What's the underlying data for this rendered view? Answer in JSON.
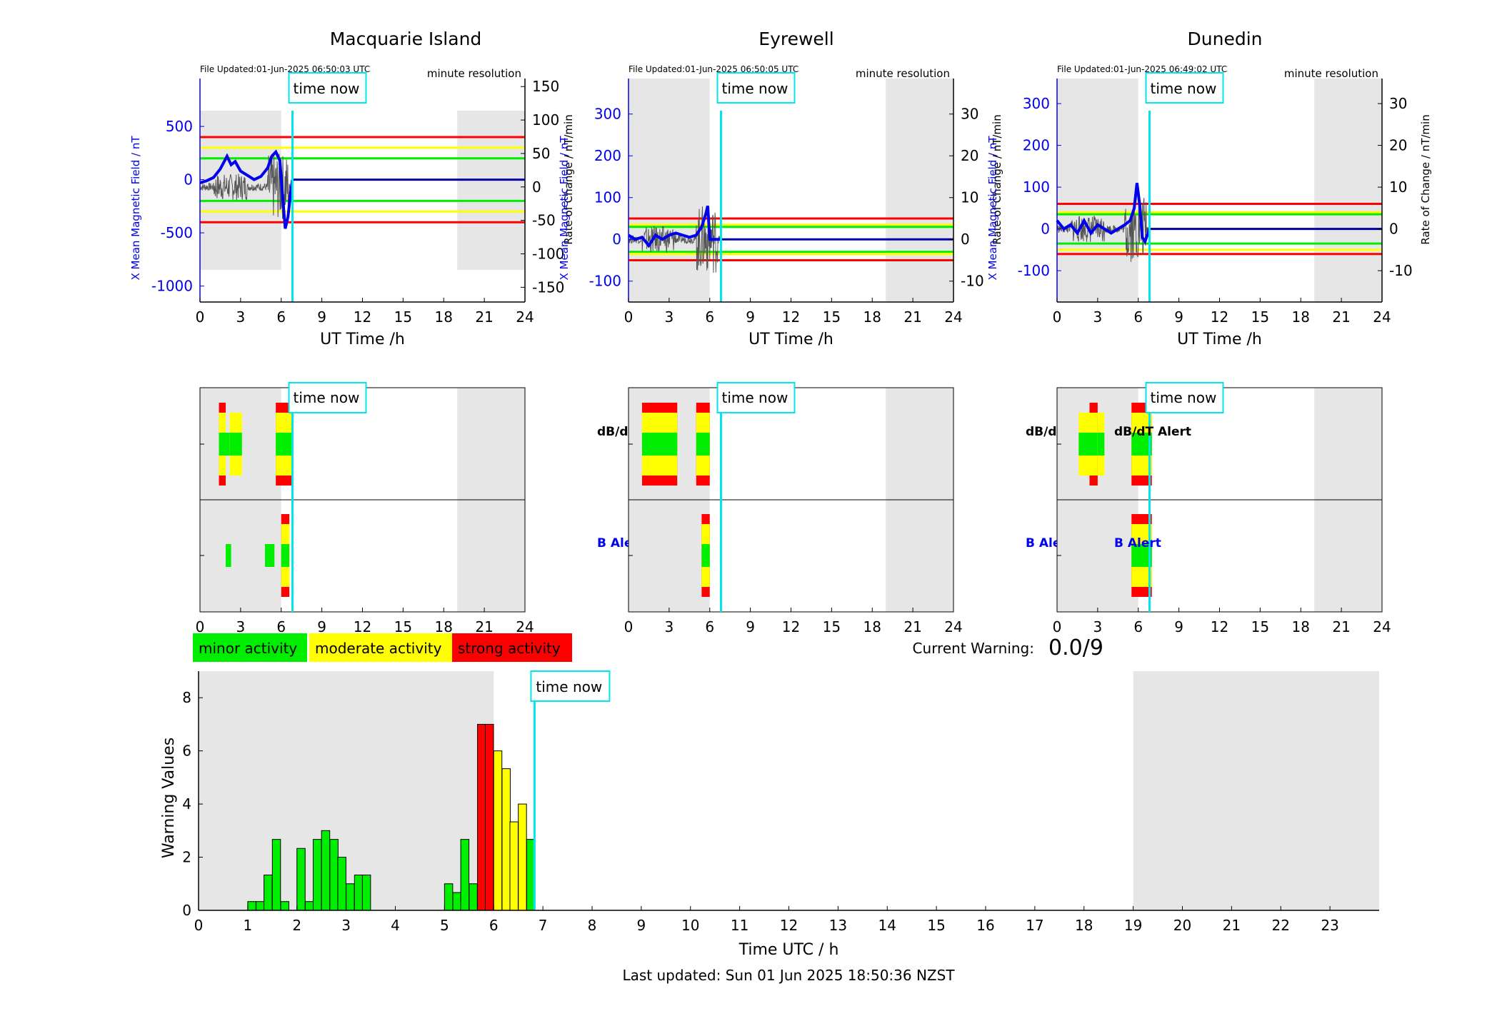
{
  "colors": {
    "minor": "#00ee00",
    "moderate": "#ffff00",
    "strong": "#ff0000",
    "field": "#0000ee",
    "rate": "#555555",
    "now": "#00e5ee",
    "night": "#e6e6e6"
  },
  "common": {
    "file_label": "File Updated:",
    "resolution": "minute resolution",
    "time_now": "time now",
    "x_label": "UT Time /h",
    "y_left_label": "X Mean Magnetic Field / nT",
    "y_right_label": "Rate of Change / nT/min",
    "dbdt_label": "dB/dT Alert",
    "b_label": "B Alert",
    "hour_ticks": [
      0,
      3,
      6,
      9,
      12,
      15,
      18,
      21,
      24
    ]
  },
  "current_hour": 6.83,
  "night_ranges": [
    [
      0,
      6
    ],
    [
      19,
      24
    ]
  ],
  "stations": [
    {
      "name": "Macquarie Island",
      "file_updated": "01-Jun-2025 06:50:03 UTC",
      "y_left_ticks": [
        500,
        0,
        -500,
        -1000
      ],
      "y_left_range": [
        -1150,
        950
      ],
      "y_right_ticks": [
        150,
        100,
        50,
        0,
        -50,
        -100,
        -150
      ],
      "y_right_range": [
        -172,
        162
      ],
      "thresholds": [
        {
          "level": "strong",
          "value": 400
        },
        {
          "level": "moderate",
          "value": 300
        },
        {
          "level": "minor",
          "value": 200
        },
        {
          "level": "minor",
          "value": -200
        },
        {
          "level": "moderate",
          "value": -300
        },
        {
          "level": "strong",
          "value": -400
        }
      ],
      "field_series": {
        "x": [
          0,
          0.5,
          1.0,
          1.5,
          2.0,
          2.3,
          2.6,
          3.0,
          3.5,
          4.0,
          4.5,
          5.0,
          5.3,
          5.6,
          5.9,
          6.1,
          6.3,
          6.5,
          6.7,
          6.83
        ],
        "y": [
          -30,
          -10,
          20,
          100,
          220,
          140,
          170,
          80,
          40,
          0,
          30,
          110,
          220,
          260,
          180,
          -150,
          -460,
          -350,
          -120,
          0
        ]
      },
      "dbdt_alerts": [
        {
          "start": 1.4,
          "end": 1.9,
          "level": "strong"
        },
        {
          "start": 1.9,
          "end": 2.2,
          "level": "minor"
        },
        {
          "start": 2.2,
          "end": 3.1,
          "level": "moderate"
        },
        {
          "start": 5.6,
          "end": 6.8,
          "level": "strong"
        }
      ],
      "b_alerts": [
        {
          "start": 1.9,
          "end": 2.3,
          "level": "minor"
        },
        {
          "start": 4.8,
          "end": 5.5,
          "level": "minor"
        },
        {
          "start": 6.0,
          "end": 6.6,
          "level": "strong"
        }
      ]
    },
    {
      "name": "Eyrewell",
      "file_updated": "01-Jun-2025 06:50:05 UTC",
      "y_left_ticks": [
        300,
        200,
        100,
        0,
        -100
      ],
      "y_left_range": [
        -150,
        385
      ],
      "y_right_ticks": [
        30,
        20,
        10,
        0,
        -10
      ],
      "y_right_range": [
        -15,
        38.5
      ],
      "thresholds": [
        {
          "level": "strong",
          "value": 50
        },
        {
          "level": "moderate",
          "value": 35
        },
        {
          "level": "minor",
          "value": 30
        },
        {
          "level": "minor",
          "value": -30
        },
        {
          "level": "moderate",
          "value": -35
        },
        {
          "level": "strong",
          "value": -50
        }
      ],
      "field_series": {
        "x": [
          0,
          0.5,
          1.0,
          1.5,
          2.0,
          2.5,
          3.0,
          3.5,
          4.0,
          4.5,
          5.0,
          5.4,
          5.7,
          5.85,
          6.0,
          6.83
        ],
        "y": [
          10,
          0,
          5,
          -15,
          10,
          0,
          10,
          15,
          10,
          5,
          10,
          30,
          60,
          80,
          0,
          0
        ]
      },
      "dbdt_alerts": [
        {
          "start": 1.0,
          "end": 3.6,
          "level": "strong"
        },
        {
          "start": 5.0,
          "end": 6.0,
          "level": "strong"
        }
      ],
      "b_alerts": [
        {
          "start": 5.4,
          "end": 6.0,
          "level": "strong"
        }
      ]
    },
    {
      "name": "Dunedin",
      "file_updated": "01-Jun-2025 06:49:02 UTC",
      "y_left_ticks": [
        300,
        200,
        100,
        0,
        -100
      ],
      "y_left_range": [
        -175,
        360
      ],
      "y_right_ticks": [
        30,
        20,
        10,
        0,
        -10
      ],
      "y_right_range": [
        -17.5,
        36
      ],
      "thresholds": [
        {
          "level": "strong",
          "value": 60
        },
        {
          "level": "moderate",
          "value": 40
        },
        {
          "level": "minor",
          "value": 35
        },
        {
          "level": "minor",
          "value": -35
        },
        {
          "level": "moderate",
          "value": -50
        },
        {
          "level": "strong",
          "value": -60
        }
      ],
      "field_series": {
        "x": [
          0,
          0.5,
          1.0,
          1.5,
          2.0,
          2.5,
          3.0,
          3.5,
          4.0,
          4.5,
          5.0,
          5.4,
          5.7,
          5.9,
          6.1,
          6.3,
          6.5,
          6.83
        ],
        "y": [
          20,
          0,
          10,
          -10,
          20,
          -10,
          10,
          0,
          -10,
          0,
          10,
          20,
          50,
          110,
          60,
          -20,
          -30,
          0
        ]
      },
      "dbdt_alerts": [
        {
          "start": 1.6,
          "end": 2.4,
          "level": "moderate"
        },
        {
          "start": 2.4,
          "end": 3.0,
          "level": "strong"
        },
        {
          "start": 3.0,
          "end": 3.5,
          "level": "moderate"
        },
        {
          "start": 5.5,
          "end": 7.0,
          "level": "strong"
        }
      ],
      "b_alerts": [
        {
          "start": 5.5,
          "end": 7.0,
          "level": "strong"
        }
      ]
    }
  ],
  "legend": {
    "minor": "minor activity",
    "moderate": "moderate activity",
    "strong": "strong activity"
  },
  "current_warning": {
    "label": "Current Warning:",
    "value": "0.0/9"
  },
  "chart_data": {
    "type": "bar",
    "x": [
      1.0,
      1.17,
      1.33,
      1.5,
      1.67,
      2.0,
      2.17,
      2.33,
      2.5,
      2.67,
      2.83,
      3.0,
      3.17,
      3.33,
      5.0,
      5.17,
      5.33,
      5.5,
      5.67,
      5.83,
      6.0,
      6.17,
      6.33,
      6.5,
      6.67
    ],
    "values": [
      0.33,
      0.33,
      1.33,
      2.67,
      0.33,
      2.33,
      0.33,
      2.67,
      3.0,
      2.67,
      2.0,
      1.0,
      1.33,
      1.33,
      1.0,
      0.67,
      2.67,
      1.0,
      7.0,
      7.0,
      6.0,
      5.33,
      3.33,
      4.0,
      2.67
    ],
    "levels": [
      "minor",
      "minor",
      "minor",
      "minor",
      "minor",
      "minor",
      "minor",
      "minor",
      "minor",
      "minor",
      "minor",
      "minor",
      "minor",
      "minor",
      "minor",
      "minor",
      "minor",
      "minor",
      "strong",
      "strong",
      "moderate",
      "moderate",
      "moderate",
      "moderate",
      "minor"
    ],
    "bin_width": 0.1667,
    "xlabel": "Time UTC / h",
    "ylabel": "Warning Values",
    "xlim": [
      0,
      24
    ],
    "ylim": [
      0,
      9
    ],
    "x_ticks": [
      0,
      1,
      2,
      3,
      4,
      5,
      6,
      7,
      8,
      9,
      10,
      11,
      12,
      13,
      14,
      15,
      16,
      17,
      18,
      19,
      20,
      21,
      22,
      23
    ],
    "y_ticks": [
      0,
      2,
      4,
      6,
      8
    ]
  },
  "footer": "Last updated: Sun 01 Jun 2025 18:50:36 NZST"
}
